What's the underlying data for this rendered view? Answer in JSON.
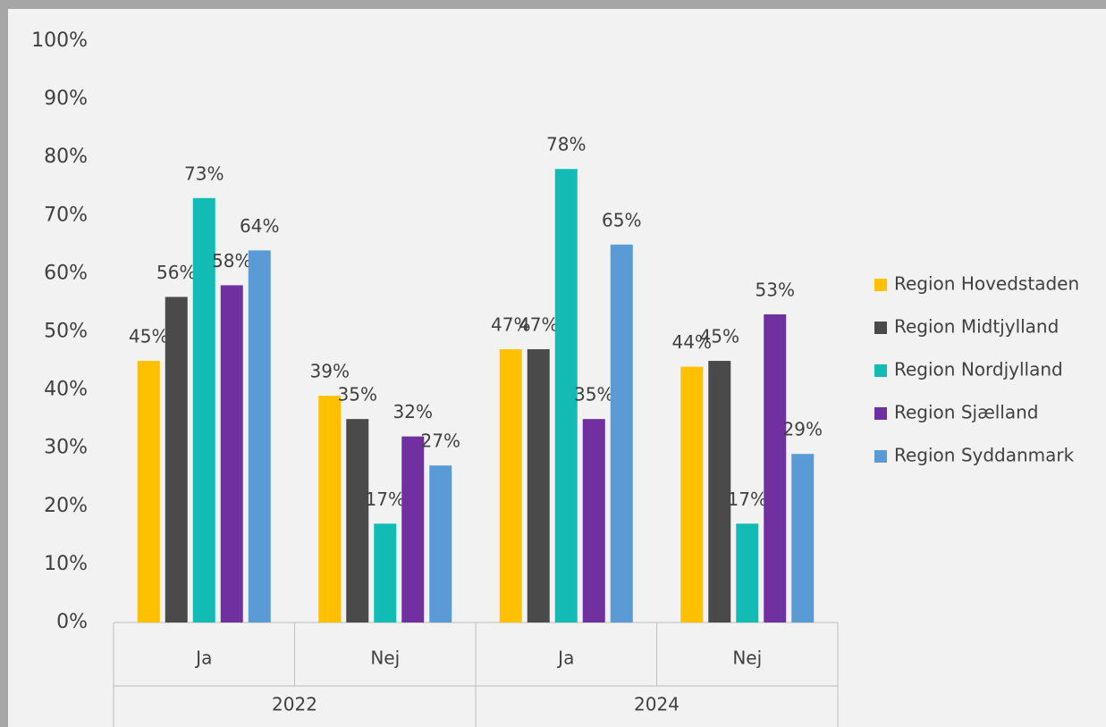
{
  "chart_data": {
    "type": "bar",
    "categories": [
      "Ja",
      "Nej",
      "Ja",
      "Nej"
    ],
    "category_groups": [
      "2022",
      "2024"
    ],
    "series": [
      {
        "name": "Region Hovedstaden",
        "color": "#ffc000",
        "values": [
          45,
          39,
          47,
          44
        ],
        "value_labels": [
          "45%",
          "39%",
          "47%",
          "44%"
        ]
      },
      {
        "name": "Region Midtjylland",
        "color": "#4a4a4a",
        "values": [
          56,
          35,
          47,
          45
        ],
        "value_labels": [
          "56%",
          "35%",
          "47%",
          "45%"
        ]
      },
      {
        "name": "Region Nordjylland",
        "color": "#12bcb4",
        "values": [
          73,
          17,
          78,
          17
        ],
        "value_labels": [
          "73%",
          "17%",
          "78%",
          "17%"
        ]
      },
      {
        "name": "Region Sjælland",
        "color": "#7030a0",
        "values": [
          58,
          32,
          35,
          53
        ],
        "value_labels": [
          "58%",
          "32%",
          "35%",
          "53%"
        ]
      },
      {
        "name": "Region Syddanmark",
        "color": "#5b9bd5",
        "values": [
          64,
          27,
          65,
          29
        ],
        "value_labels": [
          "64%",
          "27%",
          "65%",
          "29%"
        ]
      }
    ],
    "ylim": [
      0,
      100
    ],
    "yticks": [
      {
        "value": 0,
        "label": "0%"
      },
      {
        "value": 10,
        "label": "10%"
      },
      {
        "value": 20,
        "label": "20%"
      },
      {
        "value": 30,
        "label": "30%"
      },
      {
        "value": 40,
        "label": "40%"
      },
      {
        "value": 50,
        "label": "50%"
      },
      {
        "value": 60,
        "label": "60%"
      },
      {
        "value": 70,
        "label": "70%"
      },
      {
        "value": 80,
        "label": "80%"
      },
      {
        "value": 90,
        "label": "90%"
      },
      {
        "value": 100,
        "label": "100%"
      }
    ],
    "grid": false,
    "legend": "right"
  }
}
